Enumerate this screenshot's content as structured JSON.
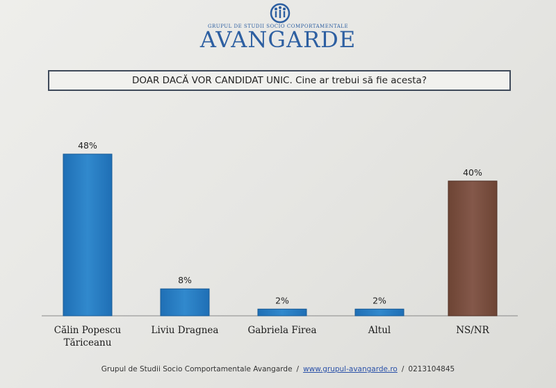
{
  "logo": {
    "small_text": "Grupul de Studii Socio Comportamentale",
    "big_text": "AVANGARDE",
    "icon": "avangarde-logo-icon"
  },
  "chart_data": {
    "type": "bar",
    "title": "DOAR DACĂ VOR CANDIDAT UNIC. Cine ar trebui să fie acesta?",
    "categories": [
      [
        "Călin Popescu",
        "Tăriceanu"
      ],
      [
        "Liviu Dragnea"
      ],
      [
        "Gabriela Firea"
      ],
      [
        "Altul"
      ],
      [
        "NS/NR"
      ]
    ],
    "values": [
      48,
      8,
      2,
      2,
      40
    ],
    "value_labels": [
      "48%",
      "8%",
      "2%",
      "2%",
      "40%"
    ],
    "bar_colors": [
      "#2a7cc0",
      "#2a7cc0",
      "#2a7cc0",
      "#2a7cc0",
      "#7a4e3e"
    ],
    "ylim": [
      0,
      48
    ],
    "grid": false,
    "legend": "none"
  },
  "footer": {
    "org": "Grupul de Studii Socio Comportamentale Avangarde",
    "separator1": "/",
    "website": "www.grupul-avangarde.ro",
    "separator2": "/",
    "phone": "0213104845"
  }
}
